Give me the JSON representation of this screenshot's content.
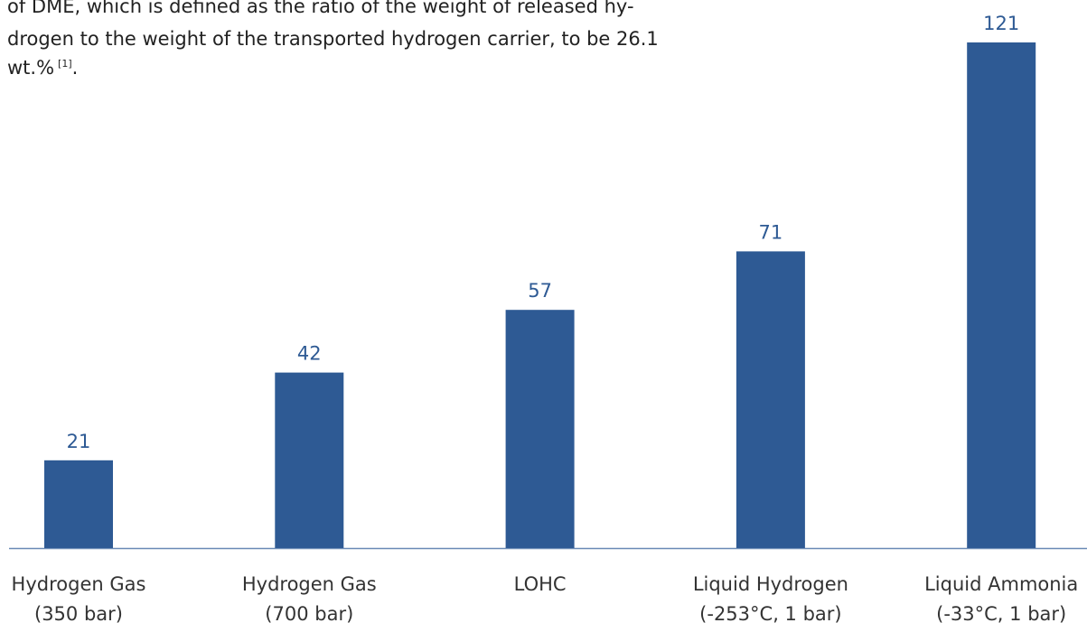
{
  "paragraph": [
    "of DME, which is defined as the ratio of the weight of released hy-",
    "drogen to the weight of the transported hydrogen carrier, to be 26.1",
    "wt.%"
  ],
  "citation": "[1]",
  "paragraph_end": ".",
  "chart_data": {
    "type": "bar",
    "categories": [
      [
        "Hydrogen Gas",
        "(350 bar)"
      ],
      [
        "Hydrogen Gas",
        "(700 bar)"
      ],
      [
        "LOHC"
      ],
      [
        "Liquid Hydrogen",
        "(-253°C, 1 bar)"
      ],
      [
        "Liquid Ammonia",
        "(-33°C, 1 bar)"
      ]
    ],
    "values": [
      21,
      42,
      57,
      71,
      121
    ],
    "color": "#2e5a94"
  }
}
